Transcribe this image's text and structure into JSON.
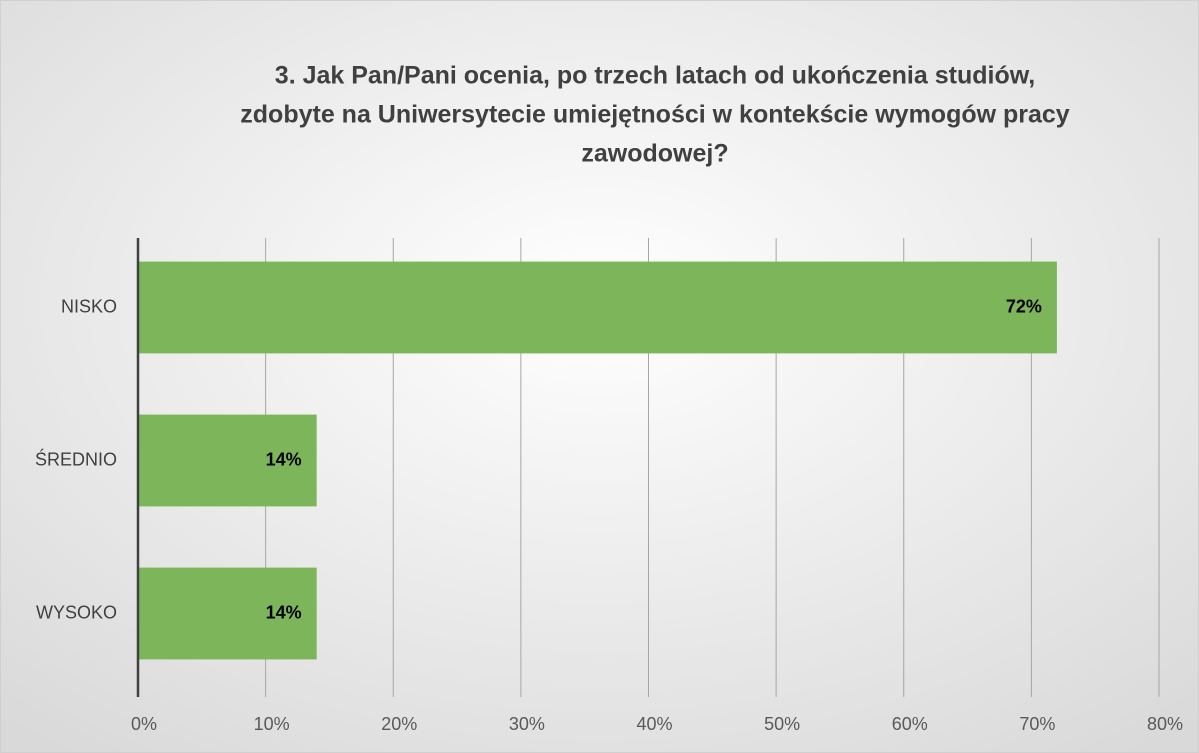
{
  "chart_data": {
    "type": "bar",
    "orientation": "horizontal",
    "title": [
      "3. Jak Pan/Pani ocenia, po trzech latach od ukończenia studiów,",
      "zdobyte na Uniwersytecie umiejętności w kontekście wymogów pracy",
      "zawodowej?"
    ],
    "categories": [
      "NISKO",
      "ŚREDNIO",
      "WYSOKO"
    ],
    "values": [
      72,
      14,
      14
    ],
    "value_labels": [
      "72%",
      "14%",
      "14%"
    ],
    "color": "#7db55a",
    "xlim": [
      0,
      80
    ],
    "xticks": [
      {
        "value": 0,
        "label": "0%"
      },
      {
        "value": 10,
        "label": "10%"
      },
      {
        "value": 20,
        "label": "20%"
      },
      {
        "value": 30,
        "label": "30%"
      },
      {
        "value": 40,
        "label": "40%"
      },
      {
        "value": 50,
        "label": "50%"
      },
      {
        "value": 60,
        "label": "60%"
      },
      {
        "value": 70,
        "label": "70%"
      },
      {
        "value": 80,
        "label": "80%"
      }
    ],
    "grid": true
  }
}
